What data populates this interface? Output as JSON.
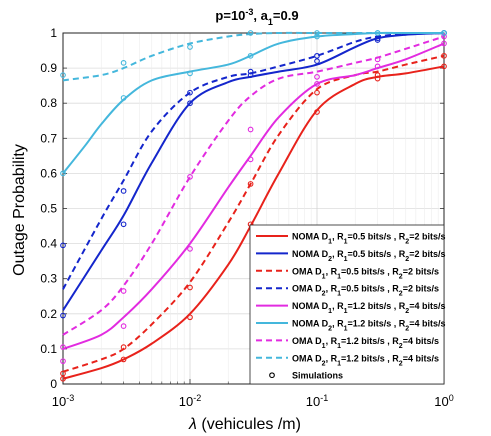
{
  "chart_data": {
    "type": "line",
    "title_parts": {
      "p_label": "p=10",
      "p_exp": "-3",
      "a_label": ", a",
      "a_sub": "1",
      "a_val": "=0.9"
    },
    "xlabel_symbol": "λ",
    "xlabel_text": " (vehicules /m)",
    "ylabel": "Outage Probability",
    "xscale": "log",
    "xlim": [
      0.001,
      1
    ],
    "ylim": [
      0,
      1
    ],
    "grid": true,
    "legend_position": "lower-right",
    "x_ticks": [
      {
        "value": 0.001,
        "base": "10",
        "exp": "-3"
      },
      {
        "value": 0.01,
        "base": "10",
        "exp": "-2"
      },
      {
        "value": 0.1,
        "base": "10",
        "exp": "-1"
      },
      {
        "value": 1,
        "base": "10",
        "exp": "0"
      }
    ],
    "y_ticks": [
      {
        "value": 0,
        "label": "0"
      },
      {
        "value": 0.1,
        "label": "0.1"
      },
      {
        "value": 0.2,
        "label": "0.2"
      },
      {
        "value": 0.3,
        "label": "0.3"
      },
      {
        "value": 0.4,
        "label": "0.4"
      },
      {
        "value": 0.5,
        "label": "0.5"
      },
      {
        "value": 0.6,
        "label": "0.6"
      },
      {
        "value": 0.7,
        "label": "0.7"
      },
      {
        "value": 0.8,
        "label": "0.8"
      },
      {
        "value": 0.9,
        "label": "0.9"
      },
      {
        "value": 1,
        "label": "1"
      }
    ],
    "series": [
      {
        "legend": [
          "NOMA D",
          "1",
          ", R",
          "1",
          "=0.5 bits/s , R",
          "2",
          "=2 bits/s"
        ],
        "color": "#e8221b",
        "dash": "solid",
        "x": [
          0.001,
          0.002,
          0.003,
          0.005,
          0.01,
          0.02,
          0.03,
          0.05,
          0.1,
          0.2,
          0.3,
          0.5,
          1
        ],
        "y": [
          0.015,
          0.045,
          0.07,
          0.115,
          0.2,
          0.34,
          0.45,
          0.6,
          0.78,
          0.855,
          0.875,
          0.885,
          0.905
        ],
        "sim_x": [
          0.001,
          0.003,
          0.01,
          0.03,
          0.1,
          0.3,
          1
        ],
        "sim_y": [
          0.015,
          0.07,
          0.19,
          0.455,
          0.775,
          0.87,
          0.905
        ]
      },
      {
        "legend": [
          "NOMA D",
          "2",
          ", R",
          "1",
          "=0.5 bits/s , R",
          "2",
          "=2 bits/s"
        ],
        "color": "#1426cc",
        "dash": "solid",
        "x": [
          0.001,
          0.002,
          0.003,
          0.005,
          0.01,
          0.02,
          0.03,
          0.05,
          0.1,
          0.2,
          0.3,
          0.5,
          1
        ],
        "y": [
          0.21,
          0.38,
          0.48,
          0.63,
          0.8,
          0.86,
          0.875,
          0.89,
          0.91,
          0.96,
          0.985,
          0.995,
          1.0
        ],
        "sim_x": [
          0.001,
          0.003,
          0.01,
          0.03,
          0.1,
          0.3,
          1
        ],
        "sim_y": [
          0.195,
          0.455,
          0.8,
          0.88,
          0.92,
          0.985,
          1.0
        ]
      },
      {
        "legend": [
          "OMA D",
          "1",
          ", R",
          "1",
          "=0.5 bits/s , R",
          "2",
          "=2 bits/s"
        ],
        "color": "#e8221b",
        "dash": "dashed",
        "x": [
          0.001,
          0.002,
          0.003,
          0.005,
          0.01,
          0.02,
          0.03,
          0.05,
          0.1,
          0.2,
          0.3,
          0.5,
          1
        ],
        "y": [
          0.035,
          0.07,
          0.1,
          0.17,
          0.29,
          0.46,
          0.57,
          0.71,
          0.84,
          0.88,
          0.89,
          0.91,
          0.935
        ],
        "sim_x": [
          0.001,
          0.003,
          0.01,
          0.03,
          0.1,
          0.3,
          1
        ],
        "sim_y": [
          0.03,
          0.105,
          0.275,
          0.57,
          0.83,
          0.88,
          0.935
        ]
      },
      {
        "legend": [
          "OMA D",
          "2",
          ", R",
          "1",
          "=0.5 bits/s , R",
          "2",
          "=2 bits/s"
        ],
        "color": "#1426cc",
        "dash": "dashed",
        "x": [
          0.001,
          0.002,
          0.003,
          0.005,
          0.01,
          0.02,
          0.03,
          0.05,
          0.1,
          0.2,
          0.3,
          0.5,
          1
        ],
        "y": [
          0.27,
          0.47,
          0.58,
          0.72,
          0.83,
          0.875,
          0.885,
          0.905,
          0.935,
          0.975,
          0.99,
          0.997,
          1.0
        ],
        "sim_x": [
          0.001,
          0.003,
          0.01,
          0.03,
          0.1,
          0.3,
          1
        ],
        "sim_y": [
          0.395,
          0.55,
          0.83,
          0.89,
          0.935,
          0.98,
          1.0
        ]
      },
      {
        "legend": [
          "NOMA D",
          "1",
          ", R",
          "1",
          "=1.2 bits/s , R",
          "2",
          "=4 bits/s"
        ],
        "color": "#e22be0",
        "dash": "solid",
        "x": [
          0.001,
          0.002,
          0.003,
          0.005,
          0.01,
          0.02,
          0.03,
          0.05,
          0.1,
          0.2,
          0.3,
          0.5,
          1
        ],
        "y": [
          0.1,
          0.14,
          0.19,
          0.27,
          0.4,
          0.56,
          0.65,
          0.76,
          0.855,
          0.88,
          0.9,
          0.925,
          0.97
        ],
        "sim_x": [
          0.001,
          0.003,
          0.01,
          0.03,
          0.1,
          0.3,
          1
        ],
        "sim_y": [
          0.065,
          0.165,
          0.385,
          0.64,
          0.855,
          0.905,
          0.97
        ]
      },
      {
        "legend": [
          "NOMA D",
          "2",
          ", R",
          "1",
          "=1.2 bits/s , R",
          "2",
          "=4 bits/s"
        ],
        "color": "#44b7dc",
        "dash": "solid",
        "x": [
          0.001,
          0.0015,
          0.002,
          0.003,
          0.005,
          0.01,
          0.02,
          0.03,
          0.05,
          0.1,
          0.2,
          0.3,
          0.5,
          1
        ],
        "y": [
          0.6,
          0.68,
          0.74,
          0.81,
          0.865,
          0.89,
          0.91,
          0.935,
          0.97,
          0.99,
          0.997,
          1.0,
          1.0,
          1.0
        ],
        "sim_x": [
          0.001,
          0.003,
          0.01,
          0.03,
          0.1,
          0.3,
          1
        ],
        "sim_y": [
          0.6,
          0.815,
          0.885,
          0.935,
          0.99,
          1.0,
          1.0
        ]
      },
      {
        "legend": [
          "OMA D",
          "1",
          ", R",
          "1",
          "=1.2 bits/s , R",
          "2",
          "=4 bits/s"
        ],
        "color": "#e22be0",
        "dash": "dashed",
        "x": [
          0.001,
          0.002,
          0.003,
          0.005,
          0.01,
          0.02,
          0.03,
          0.05,
          0.1,
          0.2,
          0.3,
          0.5,
          1
        ],
        "y": [
          0.14,
          0.21,
          0.28,
          0.4,
          0.59,
          0.75,
          0.82,
          0.87,
          0.89,
          0.915,
          0.93,
          0.955,
          0.99
        ],
        "sim_x": [
          0.001,
          0.003,
          0.01,
          0.03,
          0.1,
          0.3,
          1
        ],
        "sim_y": [
          0.105,
          0.265,
          0.59,
          0.725,
          0.875,
          0.925,
          0.99
        ]
      },
      {
        "legend": [
          "OMA D",
          "2",
          ", R",
          "1",
          "=1.2 bits/s , R",
          "2",
          "=4 bits/s"
        ],
        "color": "#44b7dc",
        "dash": "dashed",
        "x": [
          0.001,
          0.002,
          0.003,
          0.005,
          0.01,
          0.02,
          0.03,
          0.05,
          0.1,
          0.2,
          0.3,
          0.5,
          1
        ],
        "y": [
          0.865,
          0.88,
          0.9,
          0.935,
          0.97,
          0.99,
          0.997,
          1.0,
          1.0,
          1.0,
          1.0,
          1.0,
          1.0
        ],
        "sim_x": [
          0.001,
          0.003,
          0.01,
          0.03,
          0.1,
          0.3,
          1
        ],
        "sim_y": [
          0.88,
          0.915,
          0.96,
          1.0,
          1.0,
          1.0,
          1.0
        ]
      }
    ],
    "simulations_legend": "Simulations"
  }
}
